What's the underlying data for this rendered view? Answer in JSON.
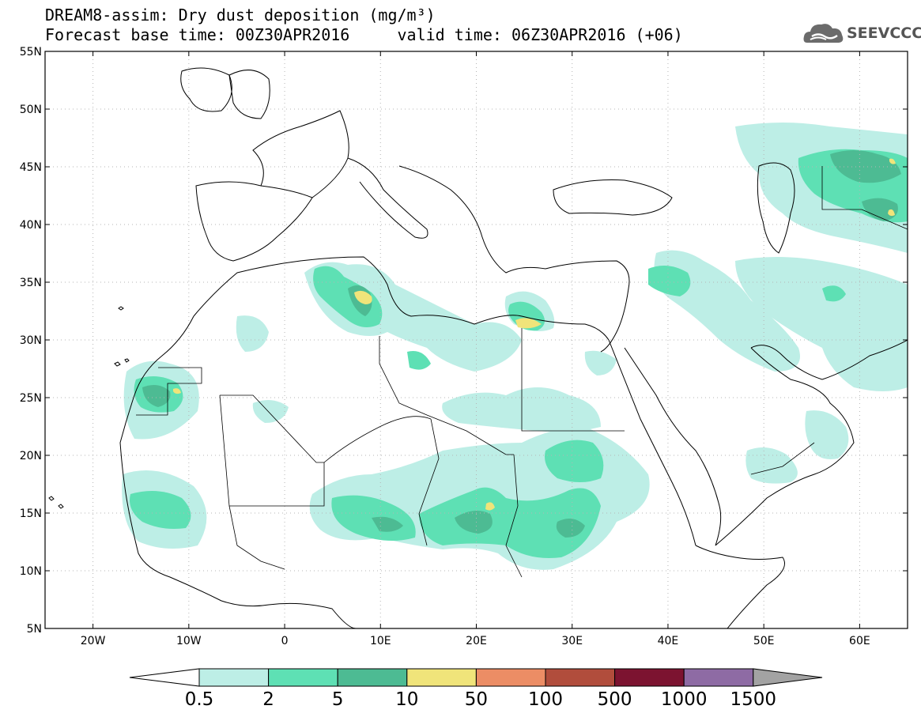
{
  "title": "DREAM8-assim: Dry dust deposition (mg/m³)",
  "subtitle": "Forecast base time: 00Z30APR2016     valid time: 06Z30APR2016 (+06)",
  "logo_text": "SEEVCCC",
  "logo_icon": "cloud-logo-icon",
  "lat_labels": [
    "55N",
    "50N",
    "45N",
    "40N",
    "35N",
    "30N",
    "25N",
    "20N",
    "15N",
    "10N",
    "5N"
  ],
  "lat_values": [
    55,
    50,
    45,
    40,
    35,
    30,
    25,
    20,
    15,
    10,
    5
  ],
  "lon_labels": [
    "20W",
    "10W",
    "0",
    "10E",
    "20E",
    "30E",
    "40E",
    "50E",
    "60E"
  ],
  "lon_values": [
    -20,
    -10,
    0,
    10,
    20,
    30,
    40,
    50,
    60
  ],
  "extent": {
    "lon": [
      -25,
      65
    ],
    "lat": [
      5,
      55
    ]
  },
  "colorbar": {
    "labels": [
      "0.5",
      "2",
      "5",
      "10",
      "50",
      "100",
      "500",
      "1000",
      "1500"
    ],
    "colors": [
      "#bdeee6",
      "#5ee0b4",
      "#4dbb93",
      "#f0e47a",
      "#ec8d65",
      "#b14d3c",
      "#7c1330",
      "#8e6ba4"
    ],
    "under_color": "#ffffff",
    "over_color": "#a3a3a3"
  }
}
